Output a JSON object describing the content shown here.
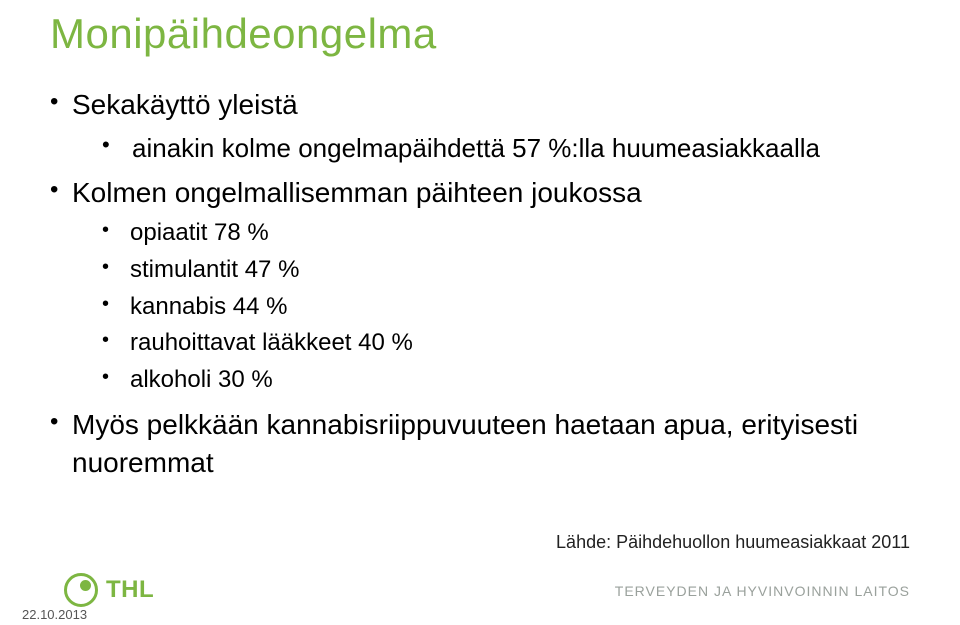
{
  "colors": {
    "title": "#7db642",
    "text": "#000000",
    "accent": "#7db642",
    "tagline": "#9aa19c",
    "background": "#ffffff"
  },
  "title": "Monipäihdeongelma",
  "bullets": [
    {
      "text": "Sekakäyttö yleistä",
      "children": [
        {
          "text": "ainakin kolme ongelmapäihdettä 57 %:lla huumeasiakkaalla"
        }
      ]
    },
    {
      "text": "Kolmen ongelmallisemman päihteen joukossa",
      "children": [
        {
          "text": "opiaatit 78 %"
        },
        {
          "text": "stimulantit 47 %"
        },
        {
          "text": "kannabis 44 %"
        },
        {
          "text": "rauhoittavat lääkkeet 40 %"
        },
        {
          "text": "alkoholi 30 %"
        }
      ]
    },
    {
      "text": "Myös pelkkään kannabisriippuvuuteen haetaan apua, erityisesti nuoremmat"
    }
  ],
  "source": "Lähde: Päihdehuollon huumeasiakkaat 2011",
  "footer": {
    "logo_text": "THL",
    "tagline": "TERVEYDEN JA HYVINVOINNIN LAITOS",
    "date": "22.10.2013"
  },
  "typography": {
    "title_fontsize": 42,
    "lvl1_fontsize": 28,
    "lvl2_fontsize": 26,
    "lvl3_fontsize": 24,
    "source_fontsize": 18,
    "tagline_fontsize": 14,
    "date_fontsize": 13,
    "font_family": "Arial"
  }
}
